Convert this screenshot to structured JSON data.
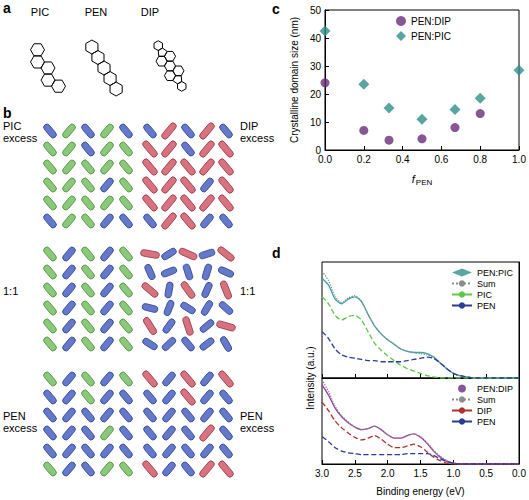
{
  "panel_letters": [
    "a",
    "b",
    "c",
    "d"
  ],
  "panel_a": {
    "molecules": [
      "PIC",
      "PEN",
      "DIP"
    ]
  },
  "panel_b": {
    "rows": [
      {
        "left": "PIC excess",
        "right": "DIP excess"
      },
      {
        "left": "1:1",
        "right": "1:1"
      },
      {
        "left": "PEN excess",
        "right": "PEN excess"
      }
    ]
  },
  "chart_data": [
    {
      "type": "scatter",
      "xlabel": {
        "text": "f",
        "subscript": "PEN"
      },
      "ylabel": "Crystalline domain size (nm)",
      "x": [
        0,
        0.2,
        0.33,
        0.5,
        0.67,
        0.8,
        1
      ],
      "series": [
        {
          "name": "PEN:DIP",
          "color": "#6a2c7a",
          "marker": "circle",
          "values": [
            24,
            7,
            3.5,
            4,
            8,
            13,
            null
          ]
        },
        {
          "name": "PEN:PIC",
          "color": "#2f8f8a",
          "marker": "diamond",
          "values": [
            42.5,
            23.5,
            15,
            11,
            14.5,
            18.5,
            28.5
          ]
        }
      ],
      "xlim": [
        0,
        1
      ],
      "xticks": [
        {
          "value": 0,
          "label": "0.0"
        },
        0.2,
        0.4,
        0.6,
        0.8,
        {
          "value": 1,
          "label": "1.0"
        }
      ],
      "ylim": [
        0,
        50
      ],
      "yticks": [
        0,
        10,
        20,
        30,
        40,
        50
      ],
      "grid": false,
      "legend": "upper center"
    },
    {
      "type": "line",
      "x": [
        3,
        2.9,
        2.8,
        2.7,
        2.6,
        2.5,
        2.4,
        2.3,
        2.2,
        2.1,
        2,
        1.9,
        1.8,
        1.7,
        1.6,
        1.5,
        1.4,
        1.3,
        1.2,
        1.1,
        1,
        0.9,
        0.8,
        0.7,
        0.6,
        0.5,
        0.4,
        0.3,
        0.2,
        0.1,
        0
      ],
      "series": [
        {
          "name": "PEN:PIC",
          "color": "#3aa6a4",
          "line_style": "solid",
          "values": [
            0.86,
            0.8,
            0.68,
            0.64,
            0.68,
            0.7,
            0.66,
            0.55,
            0.45,
            0.38,
            0.33,
            0.29,
            0.25,
            0.23,
            0.22,
            0.22,
            0.21,
            0.18,
            0.13,
            0.08,
            0.04,
            0.02,
            0.01,
            0,
            0,
            0,
            0,
            0,
            0,
            0,
            0
          ]
        },
        {
          "name": "Sum",
          "color": "#8c8c8c",
          "line_style": "dotted",
          "values": [
            0.92,
            0.84,
            0.7,
            0.65,
            0.69,
            0.71,
            0.66,
            0.55,
            0.45,
            0.38,
            0.33,
            0.29,
            0.25,
            0.23,
            0.22,
            0.21,
            0.2,
            0.18,
            0.13,
            0.08,
            0.04,
            0.02,
            0.01,
            0,
            0,
            0,
            0,
            0,
            0,
            0,
            0
          ]
        },
        {
          "name": "PIC",
          "color": "#5cc84c",
          "line_style": "dashed",
          "values": [
            0.7,
            0.64,
            0.54,
            0.5,
            0.53,
            0.54,
            0.5,
            0.4,
            0.3,
            0.24,
            0.19,
            0.15,
            0.11,
            0.08,
            0.06,
            0.04,
            0.02,
            0.01,
            0,
            0,
            0,
            0,
            0,
            0,
            0,
            0,
            0,
            0,
            0,
            0,
            0
          ]
        },
        {
          "name": "PEN",
          "color": "#2a3b9a",
          "line_style": "dashed",
          "values": [
            0.4,
            0.34,
            0.25,
            0.2,
            0.18,
            0.17,
            0.16,
            0.15,
            0.15,
            0.14,
            0.14,
            0.14,
            0.14,
            0.15,
            0.16,
            0.17,
            0.18,
            0.17,
            0.13,
            0.08,
            0.04,
            0.02,
            0.01,
            0,
            0,
            0,
            0,
            0,
            0,
            0,
            0
          ]
        }
      ],
      "xlim": [
        3,
        0
      ],
      "xticks": [
        3,
        2.5,
        2,
        1.5,
        1,
        0.5,
        0
      ],
      "ylim": [
        0,
        1
      ],
      "tick_labels": false,
      "grid": false,
      "legend": "upper right"
    },
    {
      "type": "line",
      "xlabel": "Binding energy (eV)",
      "ylabel": "Intensity (a.u.)",
      "x": [
        3,
        2.9,
        2.8,
        2.7,
        2.6,
        2.5,
        2.4,
        2.3,
        2.2,
        2.1,
        2,
        1.9,
        1.8,
        1.7,
        1.6,
        1.5,
        1.4,
        1.3,
        1.2,
        1.1,
        1,
        0.9,
        0.8,
        0.7,
        0.6,
        0.5,
        0.4,
        0.3,
        0.2,
        0.1,
        0
      ],
      "series": [
        {
          "name": "PEN:DIP",
          "color": "#9a3aa6",
          "line_style": "solid",
          "values": [
            0.92,
            0.8,
            0.65,
            0.55,
            0.48,
            0.43,
            0.4,
            0.41,
            0.44,
            0.4,
            0.34,
            0.3,
            0.3,
            0.33,
            0.35,
            0.31,
            0.24,
            0.15,
            0.08,
            0.03,
            0.01,
            0,
            0,
            0,
            0,
            0,
            0,
            0,
            0,
            0,
            0
          ]
        },
        {
          "name": "Sum",
          "color": "#8c8c8c",
          "line_style": "dotted",
          "values": [
            0.98,
            0.84,
            0.67,
            0.56,
            0.49,
            0.43,
            0.4,
            0.41,
            0.44,
            0.4,
            0.34,
            0.3,
            0.3,
            0.33,
            0.35,
            0.32,
            0.25,
            0.16,
            0.09,
            0.04,
            0.01,
            0,
            0,
            0,
            0,
            0,
            0,
            0,
            0,
            0,
            0
          ]
        },
        {
          "name": "DIP",
          "color": "#b03030",
          "line_style": "dashed",
          "values": [
            0.72,
            0.62,
            0.5,
            0.42,
            0.36,
            0.31,
            0.28,
            0.3,
            0.33,
            0.29,
            0.23,
            0.19,
            0.19,
            0.21,
            0.23,
            0.2,
            0.14,
            0.08,
            0.04,
            0.01,
            0,
            0,
            0,
            0,
            0,
            0,
            0,
            0,
            0,
            0,
            0
          ]
        },
        {
          "name": "PEN",
          "color": "#2a3b9a",
          "line_style": "dashed",
          "values": [
            0.32,
            0.26,
            0.19,
            0.15,
            0.13,
            0.12,
            0.11,
            0.11,
            0.11,
            0.11,
            0.11,
            0.11,
            0.11,
            0.12,
            0.12,
            0.12,
            0.12,
            0.1,
            0.06,
            0.03,
            0.01,
            0,
            0,
            0,
            0,
            0,
            0,
            0,
            0,
            0,
            0
          ]
        }
      ],
      "xlim": [
        3,
        0
      ],
      "xticks": [
        {
          "value": 3,
          "label": "3.0"
        },
        2.5,
        {
          "value": 2,
          "label": "2.0"
        },
        1.5,
        {
          "value": 1,
          "label": "1.0"
        },
        0.5,
        {
          "value": 0,
          "label": "0.0"
        }
      ],
      "ylim": [
        0,
        1
      ],
      "tick_labels": "x",
      "grid": false,
      "legend": "upper right"
    }
  ]
}
